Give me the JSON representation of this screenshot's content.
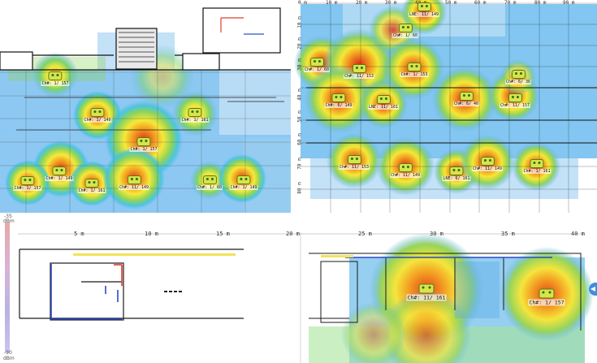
{
  "top_left": {
    "access_points": [
      {
        "label": "Ch#: 1/ 157"
      },
      {
        "label": "Ch#: 1/ 149"
      },
      {
        "label": "Ch#: 1/ 161"
      },
      {
        "label": "Ch#: 1/ 157"
      },
      {
        "label": "Ch#: 1/ 157"
      },
      {
        "label": "Ch#: 1/ 149"
      },
      {
        "label": "Ch#: 1/ 161"
      },
      {
        "label": "Ch#: 11/ 149"
      },
      {
        "label": "Ch#: 1/ 60"
      },
      {
        "label": "Ch#: 1/ 149"
      }
    ]
  },
  "top_right": {
    "x_ticks": [
      "0 m",
      "10 m",
      "20 m",
      "30 m",
      "40 m",
      "50 m",
      "60 m",
      "70 m",
      "80 m",
      "90 m"
    ],
    "y_ticks": [
      "10 m",
      "20 m",
      "30 m",
      "40 m",
      "50 m",
      "60 m",
      "70 m",
      "80 m"
    ],
    "access_points": [
      {
        "label": "LNE: 11/ 149"
      },
      {
        "label": "Ch#: 1/ 60"
      },
      {
        "label": "Ch#: 1/ 60"
      },
      {
        "label": "Ch#: 11/ 153"
      },
      {
        "label": "Ch#: 1/ 153"
      },
      {
        "label": "Ch#: 6/ 36"
      },
      {
        "label": "Ch#: 6/ 149"
      },
      {
        "label": "LNE: 11/ 161"
      },
      {
        "label": "Ch#: 6/ 40"
      },
      {
        "label": "Ch#: 11/ 157"
      },
      {
        "label": "Ch#: 11/ 153"
      },
      {
        "label": "Ch#: 11/ 149"
      },
      {
        "label": "LNE: 6/ 161"
      },
      {
        "label": "Ch#: 11/ 149"
      },
      {
        "label": "Ch#: 1/ 161"
      }
    ]
  },
  "bottom": {
    "x_ticks": [
      "5 m",
      "10 m",
      "15 m",
      "20 m",
      "25 m",
      "30 m",
      "35 m",
      "40 m"
    ],
    "access_points": [
      {
        "label": "Ch#: 11/ 161"
      },
      {
        "label": "Ch#: 1/ 157"
      }
    ],
    "scale": {
      "top": "-35",
      "top_unit": "dBm",
      "bottom": "-90",
      "bottom_unit": "dBm"
    },
    "side_handle": "◀"
  }
}
